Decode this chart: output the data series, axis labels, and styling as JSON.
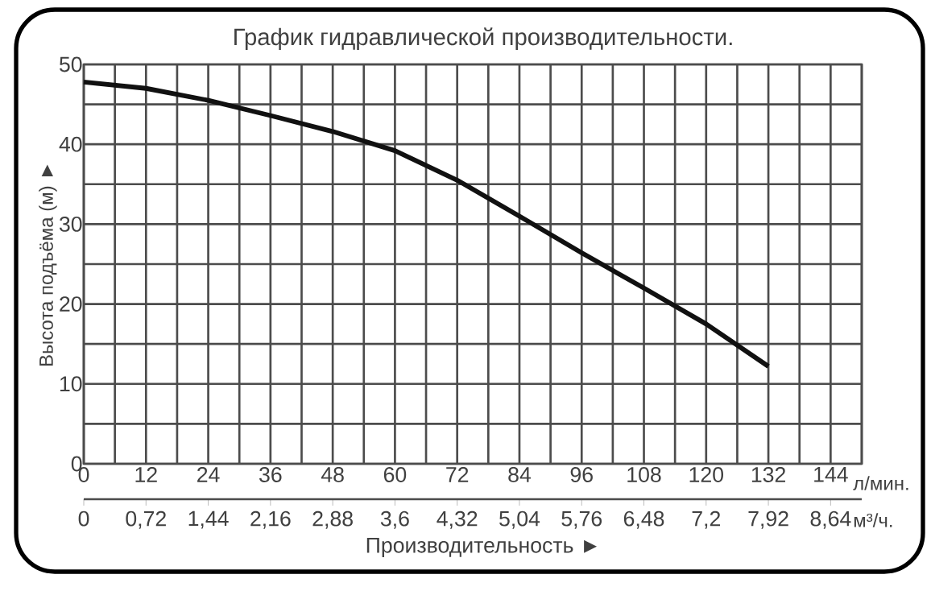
{
  "chart_data": {
    "type": "line",
    "title": "График гидравлической производительности.",
    "xlabel": "Производительность ►",
    "ylabel": "Высота подъёма (м) ►",
    "x": [
      0,
      12,
      24,
      36,
      48,
      60,
      72,
      84,
      96,
      108,
      120,
      132
    ],
    "series": [
      {
        "color": "#111111",
        "values": [
          47.8,
          47,
          45.5,
          43.6,
          41.6,
          39.2,
          35.5,
          31,
          26.4,
          22,
          17.5,
          12.2
        ]
      }
    ],
    "xlim": [
      0,
      150
    ],
    "ylim": [
      0,
      50
    ],
    "xticks": [
      0,
      {
        "value": 6,
        "label": null
      },
      12,
      {
        "value": 18,
        "label": null
      },
      24,
      {
        "value": 30,
        "label": null
      },
      36,
      {
        "value": 42,
        "label": null
      },
      48,
      {
        "value": 54,
        "label": null
      },
      60,
      {
        "value": 66,
        "label": null
      },
      72,
      {
        "value": 78,
        "label": null
      },
      84,
      {
        "value": 90,
        "label": null
      },
      96,
      {
        "value": 102,
        "label": null
      },
      108,
      {
        "value": 114,
        "label": null
      },
      120,
      {
        "value": 126,
        "label": null
      },
      132,
      {
        "value": 138,
        "label": null
      },
      144,
      {
        "value": 150,
        "label": null
      }
    ],
    "yticks": [
      0,
      {
        "value": 5,
        "label": null
      },
      10,
      {
        "value": 15,
        "label": null
      },
      20,
      {
        "value": 25,
        "label": null
      },
      30,
      {
        "value": 35,
        "label": null
      },
      40,
      {
        "value": 45,
        "label": null
      },
      50
    ],
    "x2lim": [
      0,
      9
    ],
    "x2ticks": [
      0,
      {
        "value": 0.72,
        "label": "0,72"
      },
      {
        "value": 1.44,
        "label": "1,44"
      },
      {
        "value": 2.16,
        "label": "2,16"
      },
      {
        "value": 2.88,
        "label": "2,88"
      },
      {
        "value": 3.6,
        "label": "3,6"
      },
      {
        "value": 4.32,
        "label": "4,32"
      },
      {
        "value": 5.04,
        "label": "5,04"
      },
      {
        "value": 5.76,
        "label": "5,76"
      },
      {
        "value": 6.48,
        "label": "6,48"
      },
      {
        "value": 7.2,
        "label": "7,2"
      },
      {
        "value": 7.92,
        "label": "7,92"
      },
      {
        "value": 8.64,
        "label": "8,64"
      }
    ],
    "annotations": [
      "л/мин.",
      "м³/ч."
    ],
    "grid": true,
    "marker": "none",
    "line_style": "solid"
  }
}
